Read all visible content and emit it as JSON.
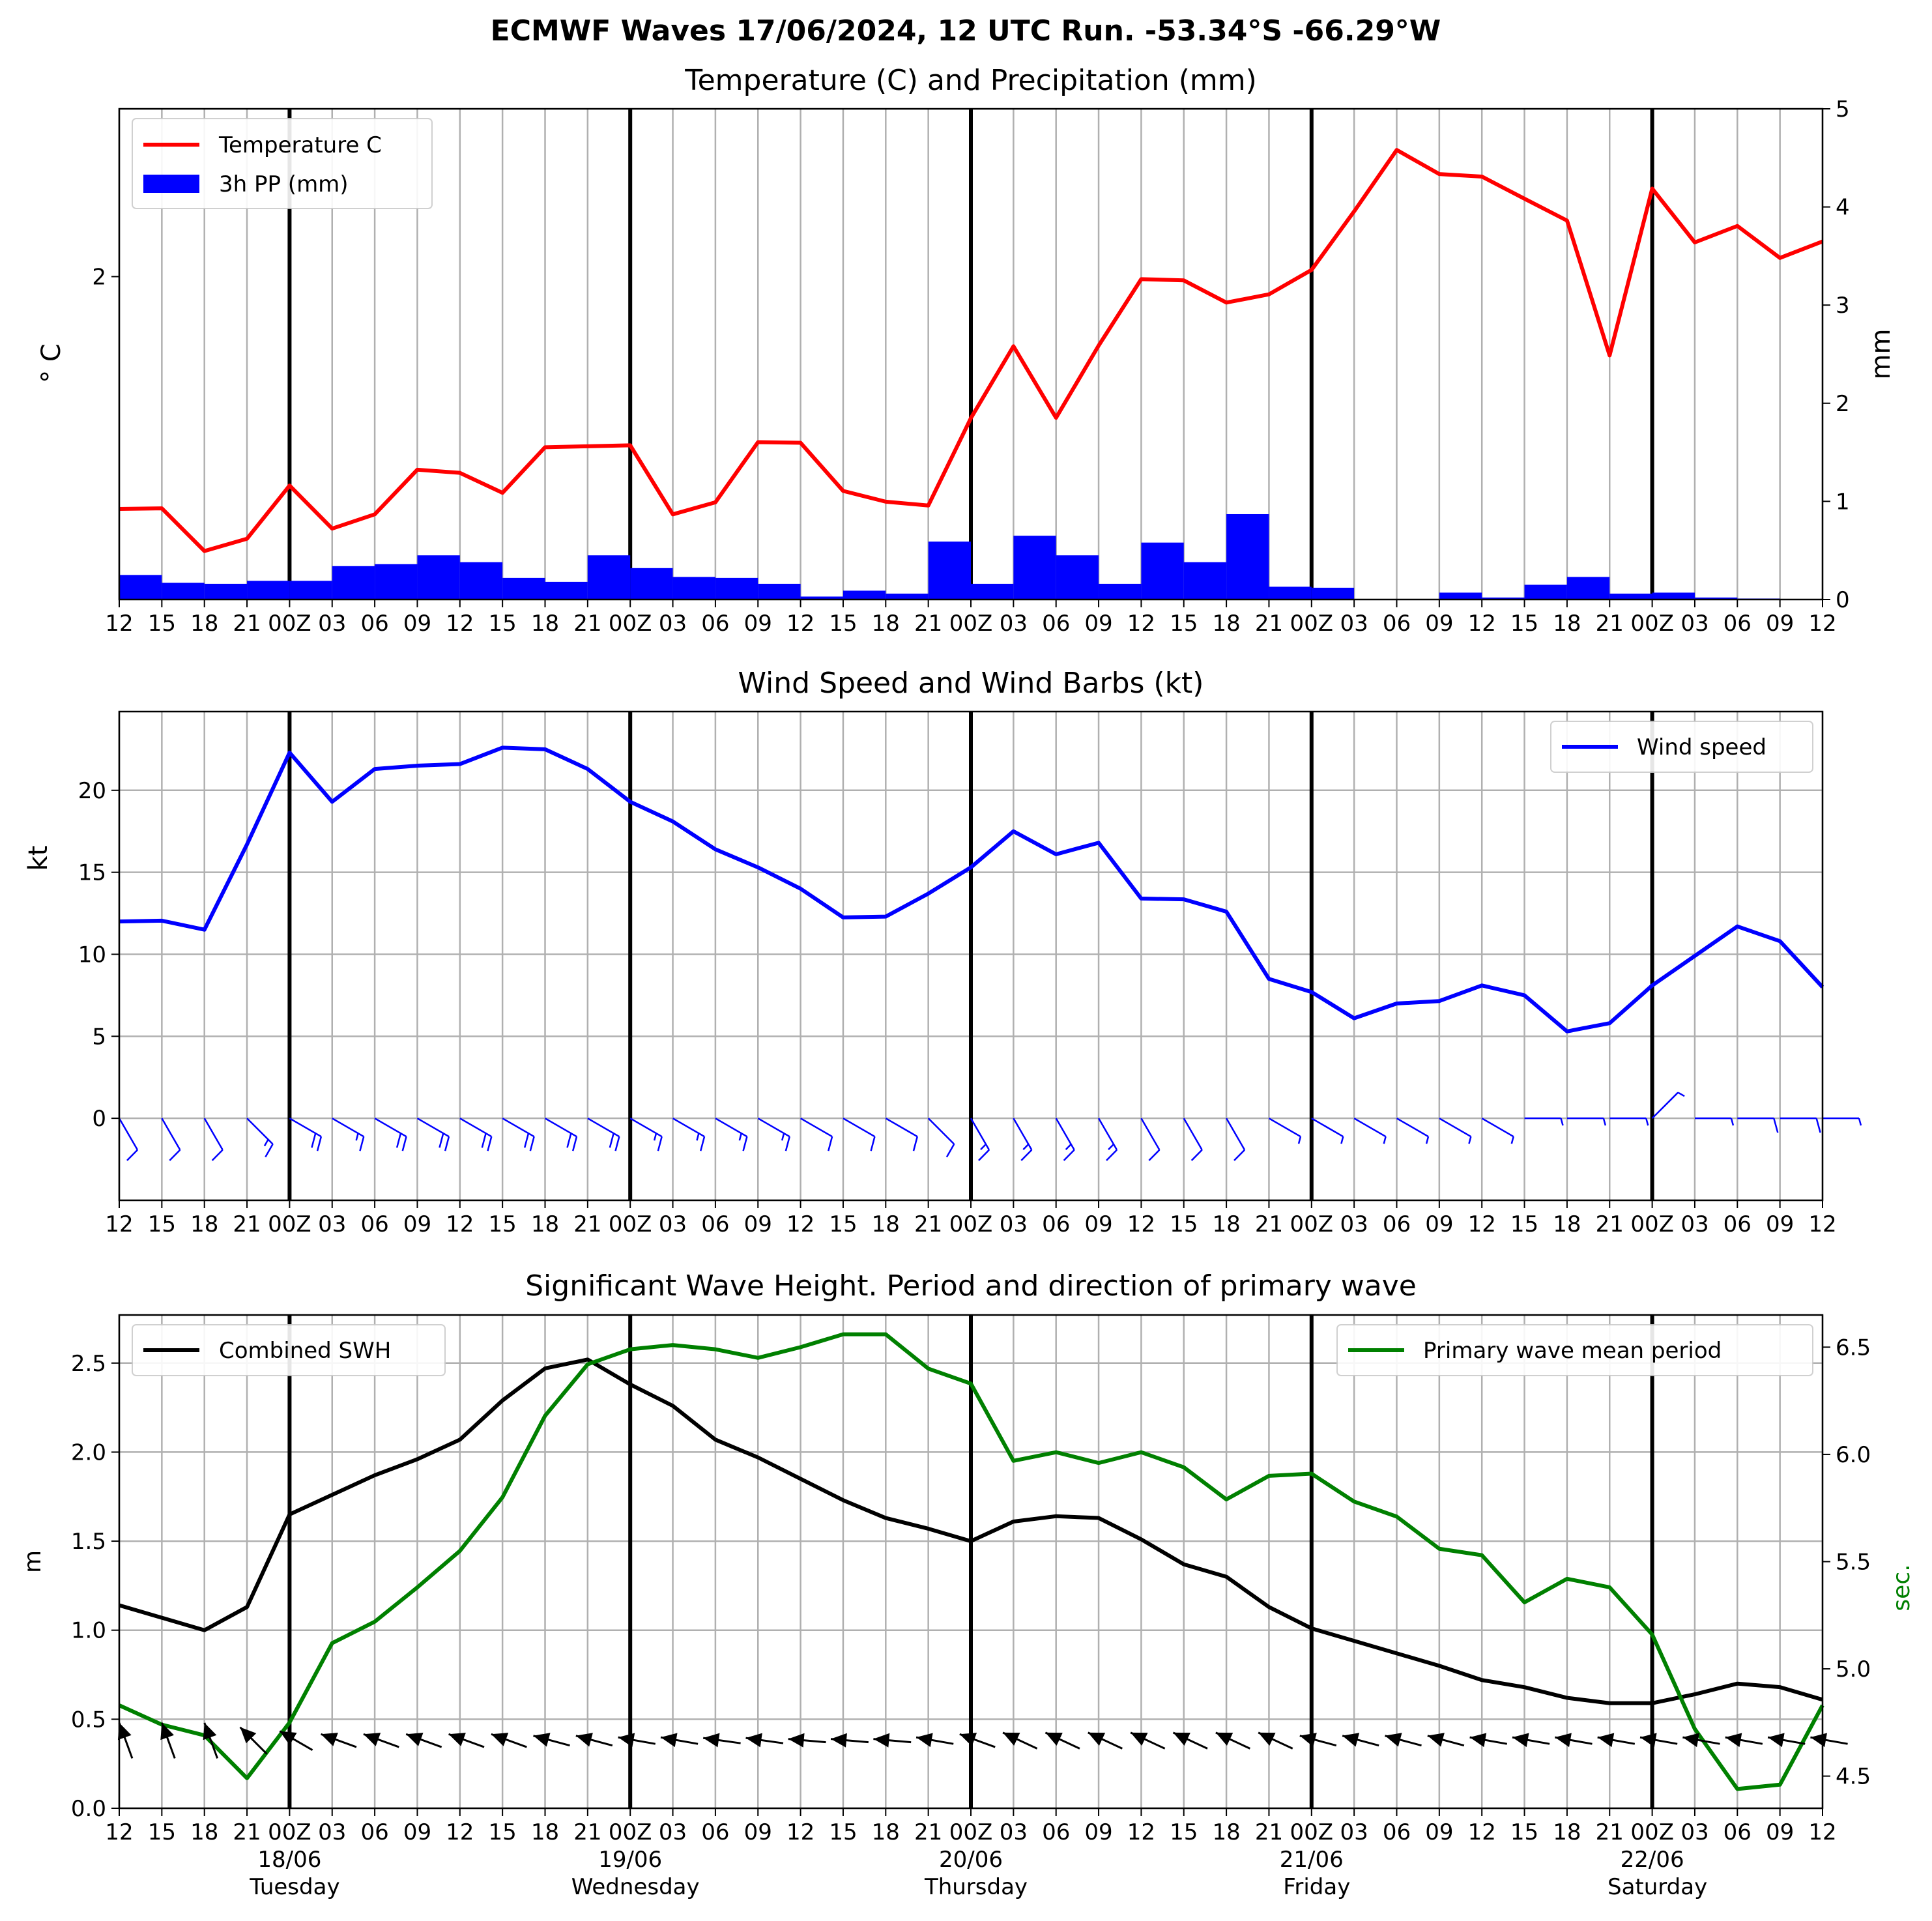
{
  "title": "ECMWF Waves 17/06/2024, 12 UTC Run. -53.34°S -66.29°W",
  "x_ticks": [
    "12",
    "15",
    "18",
    "21",
    "00Z",
    "03",
    "06",
    "09",
    "12",
    "15",
    "18",
    "21",
    "00Z",
    "03",
    "06",
    "09",
    "12",
    "15",
    "18",
    "21",
    "00Z",
    "03",
    "06",
    "09",
    "12",
    "15",
    "18",
    "21",
    "00Z",
    "03",
    "06",
    "09",
    "12",
    "15",
    "18",
    "21",
    "00Z",
    "03",
    "06",
    "09",
    "12"
  ],
  "day_labels": [
    {
      "date": "18/06",
      "day": "Tuesday",
      "index": 4
    },
    {
      "date": "19/06",
      "day": "Wednesday",
      "index": 12
    },
    {
      "date": "20/06",
      "day": "Thursday",
      "index": 20
    },
    {
      "date": "21/06",
      "day": "Friday",
      "index": 28
    },
    {
      "date": "22/06",
      "day": "Saturday",
      "index": 36
    }
  ],
  "day_boundary_indices": [
    4,
    12,
    20,
    28,
    36
  ],
  "colors": {
    "temperature": "#ff0000",
    "precip": "#0000ff",
    "wind": "#0000ff",
    "swh": "#000000",
    "period": "#008000",
    "grid": "#b0b0b0",
    "arrows": "#000000"
  },
  "chart_data": [
    {
      "type": "line",
      "title": "Temperature (C) and Precipitation (mm)",
      "ylabel": "° C",
      "y2label": "mm",
      "ylim": [
        0.98,
        2.53
      ],
      "yticks": [
        2
      ],
      "y2lim": [
        0,
        5
      ],
      "y2ticks": [
        0,
        1,
        2,
        3,
        4,
        5
      ],
      "grid": "vertical",
      "legend_position": "upper left",
      "series": [
        {
          "name": "Temperature C",
          "type": "line",
          "axis": "left",
          "values": [
            1.266,
            1.268,
            1.133,
            1.172,
            1.34,
            1.204,
            1.249,
            1.39,
            1.38,
            1.317,
            1.461,
            1.464,
            1.467,
            1.249,
            1.287,
            1.477,
            1.475,
            1.323,
            1.289,
            1.277,
            1.553,
            1.78,
            1.554,
            1.782,
            1.992,
            1.988,
            1.918,
            1.944,
            2.021,
            2.206,
            2.4,
            2.324,
            2.316,
            2.246,
            2.177,
            1.751,
            2.278,
            2.108,
            2.16,
            2.059,
            2.111
          ]
        },
        {
          "name": "3h PP (mm)",
          "type": "bar",
          "axis": "right",
          "values": [
            0.25,
            0.17,
            0.16,
            0.19,
            0.19,
            0.34,
            0.36,
            0.45,
            0.38,
            0.22,
            0.18,
            0.45,
            0.32,
            0.23,
            0.22,
            0.16,
            0.03,
            0.09,
            0.06,
            0.59,
            0.16,
            0.65,
            0.45,
            0.16,
            0.58,
            0.38,
            0.87,
            0.13,
            0.12,
            0.0,
            0.0,
            0.07,
            0.02,
            0.15,
            0.23,
            0.06,
            0.07,
            0.02,
            0.01,
            0.0
          ]
        }
      ]
    },
    {
      "type": "line",
      "title": "Wind Speed and Wind Barbs (kt)",
      "ylabel": "kt",
      "ylim": [
        -5,
        24.8
      ],
      "yticks": [
        0,
        5,
        10,
        15,
        20
      ],
      "grid": "both",
      "legend_position": "upper right",
      "series": [
        {
          "name": "Wind speed",
          "values": [
            12.0,
            12.05,
            11.5,
            16.7,
            22.3,
            19.3,
            21.3,
            21.5,
            21.6,
            22.6,
            22.5,
            21.3,
            19.3,
            18.1,
            16.4,
            15.3,
            14.0,
            12.25,
            12.3,
            13.7,
            15.3,
            17.5,
            16.1,
            16.8,
            13.4,
            13.35,
            12.6,
            8.5,
            7.7,
            6.1,
            7.0,
            7.15,
            8.1,
            7.5,
            5.3,
            5.8,
            8.1,
            9.9,
            11.7,
            10.8,
            8.0
          ]
        }
      ],
      "barb_direction_deg": [
        30,
        30,
        30,
        45,
        60,
        60,
        60,
        60,
        60,
        60,
        60,
        60,
        60,
        60,
        60,
        60,
        60,
        60,
        60,
        45,
        30,
        30,
        30,
        30,
        30,
        30,
        30,
        60,
        60,
        60,
        60,
        60,
        60,
        90,
        90,
        90,
        135,
        90,
        90,
        90,
        90
      ]
    },
    {
      "type": "line",
      "title": "Significant Wave Height. Period and direction of primary wave",
      "ylabel": "m",
      "y2label": "sec.",
      "ylim": [
        0,
        2.77
      ],
      "yticks": [
        0.0,
        0.5,
        1.0,
        1.5,
        2.0,
        2.5
      ],
      "y2lim": [
        4.35,
        6.65
      ],
      "y2ticks": [
        4.5,
        5.0,
        5.5,
        6.0,
        6.5
      ],
      "grid": "both",
      "legend_positions": {
        "Combined SWH": "upper left",
        "Primary wave mean period": "upper right"
      },
      "series": [
        {
          "name": "Combined SWH",
          "axis": "left",
          "values": [
            1.14,
            1.07,
            1.0,
            1.13,
            1.65,
            1.76,
            1.87,
            1.96,
            2.07,
            2.29,
            2.47,
            2.52,
            2.38,
            2.26,
            2.07,
            1.97,
            1.85,
            1.73,
            1.63,
            1.57,
            1.5,
            1.61,
            1.64,
            1.63,
            1.51,
            1.37,
            1.3,
            1.13,
            1.01,
            0.94,
            0.87,
            0.8,
            0.72,
            0.68,
            0.62,
            0.59,
            0.59,
            0.64,
            0.7,
            0.68,
            0.61
          ]
        },
        {
          "name": "Primary wave mean period",
          "axis": "right",
          "values": [
            4.83,
            4.74,
            4.69,
            4.49,
            4.75,
            5.12,
            5.22,
            5.38,
            5.55,
            5.8,
            6.18,
            6.42,
            6.49,
            6.51,
            6.49,
            6.45,
            6.5,
            6.56,
            6.56,
            6.4,
            6.33,
            5.97,
            6.01,
            5.96,
            6.01,
            5.94,
            5.79,
            5.9,
            5.91,
            5.78,
            5.71,
            5.56,
            5.53,
            5.31,
            5.42,
            5.38,
            5.16,
            4.72,
            4.44,
            4.46,
            4.83
          ]
        }
      ],
      "wave_direction_deg": [
        20,
        20,
        20,
        45,
        60,
        70,
        70,
        70,
        70,
        70,
        75,
        75,
        80,
        80,
        82,
        82,
        85,
        85,
        85,
        80,
        70,
        65,
        65,
        65,
        65,
        65,
        65,
        65,
        75,
        75,
        75,
        75,
        80,
        80,
        80,
        80,
        80,
        80,
        80,
        80,
        80
      ]
    }
  ],
  "axis_date_labels_note": ""
}
